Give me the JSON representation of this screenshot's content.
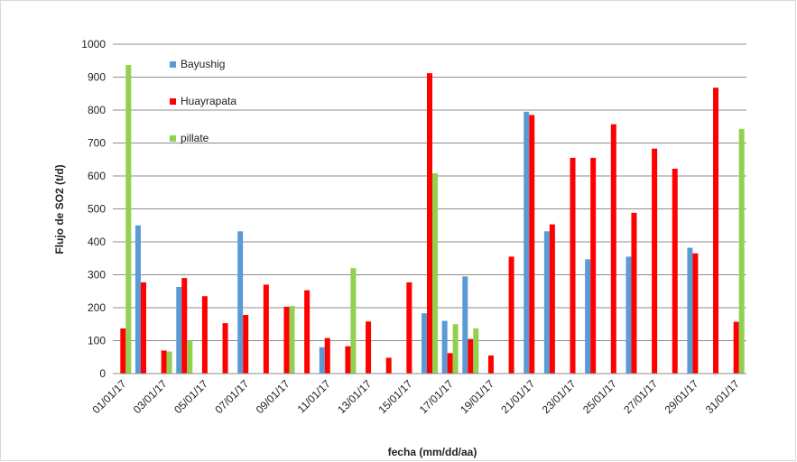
{
  "chart_data": {
    "type": "bar",
    "xlabel": "fecha (mm/dd/aa)",
    "ylabel": "Flujo de SO2 (t/d)",
    "ylim": [
      0,
      1000
    ],
    "yticks": [
      0,
      100,
      200,
      300,
      400,
      500,
      600,
      700,
      800,
      900,
      1000
    ],
    "grid": true,
    "legend_position": "top-left",
    "categories": [
      "01/01/17",
      "02/01/17",
      "03/01/17",
      "04/01/17",
      "05/01/17",
      "06/01/17",
      "07/01/17",
      "08/01/17",
      "09/01/17",
      "10/01/17",
      "11/01/17",
      "12/01/17",
      "13/01/17",
      "14/01/17",
      "15/01/17",
      "16/01/17",
      "17/01/17",
      "18/01/17",
      "19/01/17",
      "20/01/17",
      "21/01/17",
      "22/01/17",
      "23/01/17",
      "24/01/17",
      "25/01/17",
      "26/01/17",
      "27/01/17",
      "28/01/17",
      "29/01/17",
      "30/01/17",
      "31/01/17"
    ],
    "tick_labels": [
      "01/01/17",
      "03/01/17",
      "05/01/17",
      "07/01/17",
      "09/01/17",
      "11/01/17",
      "13/01/17",
      "15/01/17",
      "17/01/17",
      "19/01/17",
      "21/01/17",
      "23/01/17",
      "25/01/17",
      "27/01/17",
      "29/01/17",
      "31/01/17"
    ],
    "series": [
      {
        "name": "Bayushig",
        "color": "#5b9bd5",
        "values": [
          null,
          450,
          null,
          263,
          null,
          null,
          432,
          null,
          null,
          null,
          80,
          null,
          null,
          null,
          null,
          183,
          160,
          295,
          null,
          null,
          795,
          432,
          null,
          347,
          null,
          355,
          null,
          null,
          382,
          null,
          null
        ]
      },
      {
        "name": "Huayrapata",
        "color": "#ff0000",
        "values": [
          137,
          277,
          70,
          290,
          235,
          153,
          178,
          270,
          203,
          253,
          108,
          83,
          158,
          48,
          277,
          912,
          62,
          105,
          55,
          355,
          785,
          453,
          655,
          655,
          757,
          488,
          683,
          622,
          365,
          868,
          157
        ]
      },
      {
        "name": "pillate",
        "color": "#92d050",
        "values": [
          937,
          null,
          67,
          100,
          null,
          null,
          null,
          null,
          205,
          null,
          null,
          320,
          null,
          null,
          null,
          608,
          150,
          137,
          null,
          null,
          null,
          null,
          null,
          null,
          null,
          null,
          null,
          null,
          null,
          null,
          743
        ]
      }
    ]
  }
}
